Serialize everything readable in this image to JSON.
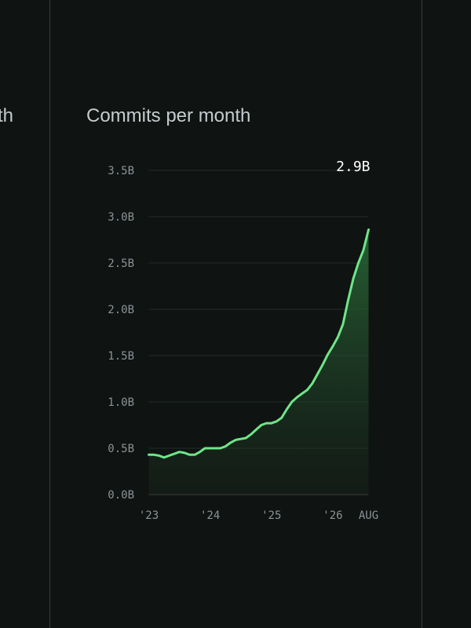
{
  "left_panel_title": "th",
  "chart_data": {
    "type": "line",
    "title": "Commits per month",
    "categories": [
      "'23",
      null,
      null,
      null,
      null,
      null,
      null,
      null,
      null,
      null,
      null,
      null,
      "'24",
      null,
      null,
      null,
      null,
      null,
      null,
      null,
      null,
      null,
      null,
      null,
      "'25",
      null,
      null,
      null,
      null,
      null,
      null,
      null,
      null,
      null,
      null,
      null,
      "'26",
      null,
      null,
      null,
      null,
      null,
      null,
      "AUG"
    ],
    "values": [
      0.43,
      0.43,
      0.42,
      0.4,
      0.42,
      0.44,
      0.46,
      0.45,
      0.43,
      0.43,
      0.46,
      0.5,
      0.5,
      0.5,
      0.5,
      0.52,
      0.56,
      0.59,
      0.6,
      0.61,
      0.65,
      0.7,
      0.75,
      0.77,
      0.77,
      0.79,
      0.83,
      0.92,
      1.0,
      1.05,
      1.09,
      1.13,
      1.2,
      1.3,
      1.4,
      1.51,
      1.6,
      1.7,
      1.84,
      2.1,
      2.33,
      2.5,
      2.64,
      2.86
    ],
    "value_labels": [
      null,
      null,
      null,
      null,
      null,
      null,
      null,
      null,
      null,
      null,
      null,
      null,
      null,
      null,
      null,
      null,
      null,
      null,
      null,
      null,
      null,
      null,
      null,
      null,
      null,
      null,
      null,
      null,
      null,
      null,
      null,
      null,
      null,
      null,
      null,
      null,
      null,
      null,
      null,
      null,
      null,
      null,
      null,
      "2.9B"
    ],
    "color": "#6fe589",
    "ylim": [
      0,
      3.5
    ],
    "yticks": [
      {
        "value": 0,
        "label": "0.0B"
      },
      {
        "value": 0.5,
        "label": "0.5B"
      },
      {
        "value": 1,
        "label": "1.0B"
      },
      {
        "value": 1.5,
        "label": "1.5B"
      },
      {
        "value": 2,
        "label": "2.0B"
      },
      {
        "value": 2.5,
        "label": "2.5B"
      },
      {
        "value": 3,
        "label": "3.0B"
      },
      {
        "value": 3.5,
        "label": "3.5B"
      }
    ],
    "grid": true
  }
}
